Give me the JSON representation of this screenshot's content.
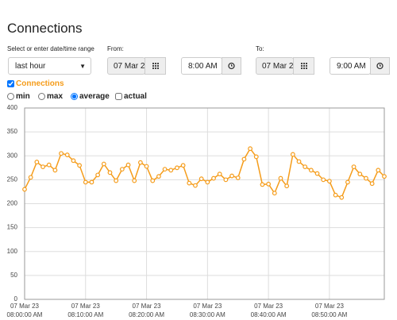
{
  "header": {
    "title": "Connections"
  },
  "range": {
    "label": "Select or enter date/time range",
    "preset": "last hour",
    "from_label": "From:",
    "from_date": "07 Mar 2",
    "from_time": "8:00 AM",
    "to_label": "To:",
    "to_date": "07 Mar 2",
    "to_time": "9:00 AM"
  },
  "options": {
    "aggregates": [
      "min",
      "max",
      "average"
    ],
    "selected": "average",
    "actual": "actual"
  },
  "chart_data": {
    "type": "line",
    "color": "#f59c1a",
    "grid": true,
    "ylim": [
      0,
      400
    ],
    "yticks": [
      0,
      50,
      100,
      150,
      200,
      250,
      300,
      350,
      400
    ],
    "xlim": [
      "08:00:00",
      "08:59:00"
    ],
    "xticks": [
      {
        "value": "08:00:00",
        "label": [
          "07 Mar 23",
          "08:00:00 AM"
        ]
      },
      {
        "value": "08:10:00",
        "label": [
          "07 Mar 23",
          "08:10:00 AM"
        ]
      },
      {
        "value": "08:20:00",
        "label": [
          "07 Mar 23",
          "08:20:00 AM"
        ]
      },
      {
        "value": "08:30:00",
        "label": [
          "07 Mar 23",
          "08:30:00 AM"
        ]
      },
      {
        "value": "08:40:00",
        "label": [
          "07 Mar 23",
          "08:40:00 AM"
        ]
      },
      {
        "value": "08:50:00",
        "label": [
          "07 Mar 23",
          "08:50:00 AM"
        ]
      }
    ],
    "x": [
      "08:00:00",
      "08:01:00",
      "08:02:00",
      "08:03:00",
      "08:04:00",
      "08:05:00",
      "08:06:00",
      "08:07:00",
      "08:08:00",
      "08:09:00",
      "08:10:00",
      "08:11:00",
      "08:12:00",
      "08:13:00",
      "08:14:00",
      "08:15:00",
      "08:16:00",
      "08:17:00",
      "08:18:00",
      "08:19:00",
      "08:20:00",
      "08:21:00",
      "08:22:00",
      "08:23:00",
      "08:24:00",
      "08:25:00",
      "08:26:00",
      "08:27:00",
      "08:28:00",
      "08:29:00",
      "08:30:00",
      "08:31:00",
      "08:32:00",
      "08:33:00",
      "08:34:00",
      "08:35:00",
      "08:36:00",
      "08:37:00",
      "08:38:00",
      "08:39:00",
      "08:40:00",
      "08:41:00",
      "08:42:00",
      "08:43:00",
      "08:44:00",
      "08:45:00",
      "08:46:00",
      "08:47:00",
      "08:48:00",
      "08:49:00",
      "08:50:00",
      "08:51:00",
      "08:52:00",
      "08:53:00",
      "08:54:00",
      "08:55:00",
      "08:56:00",
      "08:57:00",
      "08:58:00",
      "08:59:00"
    ],
    "series": [
      {
        "name": "Connections",
        "color": "#f59c1a",
        "values": [
          230,
          255,
          287,
          277,
          281,
          270,
          305,
          302,
          290,
          280,
          245,
          245,
          260,
          283,
          265,
          248,
          272,
          281,
          248,
          286,
          278,
          248,
          257,
          272,
          270,
          275,
          280,
          243,
          238,
          252,
          245,
          253,
          262,
          250,
          258,
          254,
          293,
          315,
          298,
          240,
          241,
          222,
          253,
          237,
          303,
          288,
          277,
          270,
          263,
          250,
          247,
          218,
          213,
          245,
          277,
          262,
          253,
          242,
          270,
          257
        ]
      }
    ]
  }
}
